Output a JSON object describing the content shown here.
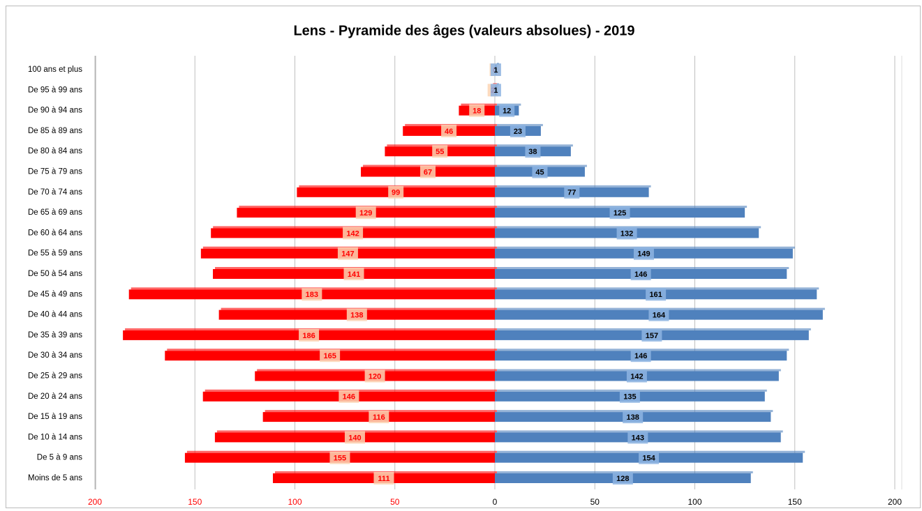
{
  "chart_data": {
    "type": "pyramid",
    "title": "Lens - Pyramide des âges (valeurs absolues) - 2019",
    "categories": [
      "100 ans et plus",
      "De 95 à 99 ans",
      "De 90 à 94 ans",
      "De 85 à 89 ans",
      "De 80 à 84 ans",
      "De 75 à 79 ans",
      "De 70 à 74 ans",
      "De 65 à 69 ans",
      "De 60 à 64 ans",
      "De 55 à 59 ans",
      "De 50 à 54 ans",
      "De 45 à 49 ans",
      "De 40 à 44 ans",
      "De 35 à 39 ans",
      "De 30 à 34 ans",
      "De 25 à 29 ans",
      "De 20 à 24 ans",
      "De 15 à 19 ans",
      "De 10 à 14 ans",
      "De 5 à 9 ans",
      "Moins de 5 ans"
    ],
    "series": [
      {
        "side": "left",
        "color": "#ff0000",
        "label_color": "#ff0000",
        "label_box": "#fcd5b4",
        "values": [
          0,
          2,
          18,
          46,
          55,
          67,
          99,
          129,
          142,
          147,
          141,
          183,
          138,
          186,
          165,
          120,
          146,
          116,
          140,
          155,
          111
        ]
      },
      {
        "side": "right",
        "color": "#4f81bd",
        "label_color": "#000000",
        "label_box": "#8db4e2",
        "values": [
          1,
          1,
          12,
          23,
          38,
          45,
          77,
          125,
          132,
          149,
          146,
          161,
          164,
          157,
          146,
          142,
          135,
          138,
          143,
          154,
          128
        ]
      }
    ],
    "xlim": [
      0,
      200
    ],
    "xticks": [
      0,
      50,
      100,
      150,
      200
    ],
    "left_tick_color": "#ff0000",
    "grid": true
  }
}
